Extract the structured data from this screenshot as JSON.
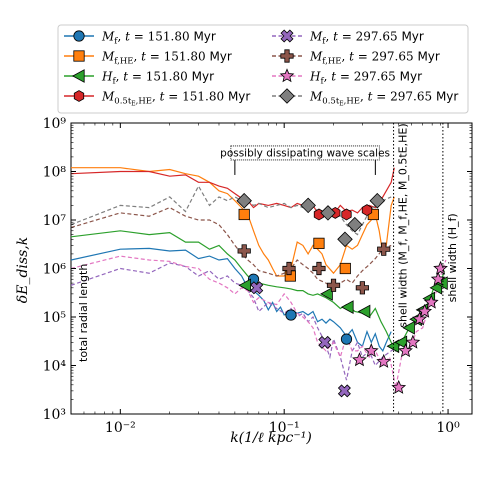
{
  "chart_data": {
    "type": "line",
    "title": "",
    "xlabel": "k(1/ℓ kpc⁻¹)",
    "ylabel": "δE_diss,k",
    "xscale": "log",
    "yscale": "log",
    "xlim": [
      0.005,
      1.4
    ],
    "ylim": [
      1000,
      1000000000
    ],
    "x_ticks": [
      0.01,
      0.1,
      1
    ],
    "x_tick_labels": [
      "10⁻²",
      "10⁻¹",
      "10⁰"
    ],
    "y_ticks": [
      1000,
      10000,
      100000,
      1000000,
      10000000,
      100000000,
      1000000000
    ],
    "y_tick_labels": [
      "10³",
      "10⁴",
      "10⁵",
      "10⁶",
      "10⁷",
      "10⁸",
      "10⁹"
    ],
    "grid": false,
    "legend_placement": "top, outside plot, two columns",
    "legend": [
      {
        "symbol": "M",
        "sub": "f",
        "t": "151.80",
        "unit": "Myr",
        "color": "#1f77b4",
        "marker": "circle",
        "dash": "solid"
      },
      {
        "symbol": "M",
        "sub": "f,HE",
        "t": "151.80",
        "unit": "Myr",
        "color": "#ff7f0e",
        "marker": "square",
        "dash": "solid"
      },
      {
        "symbol": "H",
        "sub": "f",
        "t": "151.80",
        "unit": "Myr",
        "color": "#2ca02c",
        "marker": "triangle-left",
        "dash": "solid"
      },
      {
        "symbol": "M",
        "sub": "0.5t",
        "sub2": "E",
        "subtail": ",HE",
        "t": "151.80",
        "unit": "Myr",
        "color": "#d62728",
        "marker": "hexagon",
        "dash": "solid"
      },
      {
        "symbol": "M",
        "sub": "f",
        "t": "297.65",
        "unit": "Myr",
        "color": "#9467bd",
        "marker": "x-cross",
        "dash": "dashed"
      },
      {
        "symbol": "M",
        "sub": "f,HE",
        "t": "297.65",
        "unit": "Myr",
        "color": "#8c564b",
        "marker": "plus",
        "dash": "dashed"
      },
      {
        "symbol": "H",
        "sub": "f",
        "t": "297.65",
        "unit": "Myr",
        "color": "#e377c2",
        "marker": "star",
        "dash": "dashed"
      },
      {
        "symbol": "M",
        "sub": "0.5t",
        "sub2": "E",
        "subtail": ",HE",
        "t": "297.65",
        "unit": "Myr",
        "color": "#7f7f7f",
        "marker": "diamond",
        "dash": "dashed"
      }
    ],
    "series": [
      {
        "color": "#1f77b4",
        "marker": "circle",
        "dash": "solid",
        "width": 1.2,
        "x": [
          0.005,
          0.01,
          0.015,
          0.02,
          0.025,
          0.03,
          0.035,
          0.04,
          0.045,
          0.05,
          0.055,
          0.06,
          0.065,
          0.07,
          0.075,
          0.08,
          0.085,
          0.09,
          0.095,
          0.1,
          0.11,
          0.12,
          0.13,
          0.14,
          0.15,
          0.16,
          0.17,
          0.18,
          0.19,
          0.2,
          0.22,
          0.24,
          0.26,
          0.28,
          0.3,
          0.32,
          0.34,
          0.36,
          0.38,
          0.4,
          0.42,
          0.45
        ],
        "y": [
          1500000,
          2500000,
          2600000,
          2300000,
          2400000,
          1600000,
          1800000,
          1500000,
          1600000,
          1000000,
          700000,
          400000,
          350000,
          280000,
          220000,
          140000,
          200000,
          130000,
          160000,
          110000,
          140000,
          120000,
          130000,
          110000,
          130000,
          80000,
          90000,
          75000,
          90000,
          80000,
          60000,
          40000,
          55000,
          30000,
          25000,
          50000,
          30000,
          45000,
          25000,
          20000,
          30000,
          50000
        ],
        "mx": [
          0.065,
          0.11,
          0.24
        ],
        "my": [
          600000,
          110000,
          35000
        ]
      },
      {
        "color": "#ff7f0e",
        "marker": "square",
        "dash": "solid",
        "width": 1.2,
        "x": [
          0.005,
          0.01,
          0.015,
          0.02,
          0.025,
          0.03,
          0.035,
          0.04,
          0.045,
          0.05,
          0.055,
          0.06,
          0.065,
          0.07,
          0.075,
          0.08,
          0.085,
          0.09,
          0.1,
          0.11,
          0.12,
          0.13,
          0.14,
          0.15,
          0.16,
          0.17,
          0.18,
          0.2,
          0.22,
          0.24,
          0.26,
          0.28,
          0.3,
          0.32,
          0.34,
          0.36,
          0.38,
          0.4,
          0.42,
          0.45,
          0.47
        ],
        "y": [
          120000000,
          120000000,
          100000000,
          110000000,
          90000000,
          80000000,
          60000000,
          40000000,
          35000000,
          25000000,
          18000000,
          13000000,
          6000000,
          3000000,
          2000000,
          1500000,
          1000000,
          700000,
          700000,
          1000000,
          3500000,
          3000000,
          2000000,
          3000000,
          2500000,
          2000000,
          1200000,
          800000,
          1200000,
          3000000,
          2500000,
          3000000,
          5000000,
          8000000,
          10000000,
          13000000,
          6000000,
          2000000,
          3000000,
          20000000,
          30000000
        ],
        "mx": [
          0.057,
          0.109,
          0.163,
          0.236,
          0.35
        ],
        "my": [
          13000000,
          700000,
          3300000,
          1000000,
          13000000
        ]
      },
      {
        "color": "#2ca02c",
        "marker": "triangle-left",
        "dash": "solid",
        "width": 1.2,
        "x": [
          0.005,
          0.01,
          0.015,
          0.02,
          0.025,
          0.03,
          0.035,
          0.04,
          0.045,
          0.05,
          0.055,
          0.06,
          0.065,
          0.07,
          0.08,
          0.09,
          0.1,
          0.11,
          0.12,
          0.13,
          0.14,
          0.15,
          0.16,
          0.18,
          0.2,
          0.22,
          0.24,
          0.27,
          0.3,
          0.33,
          0.36,
          0.39,
          0.42,
          0.45,
          0.48,
          0.52,
          0.58,
          0.64,
          0.7,
          0.76,
          0.82,
          0.9,
          0.95
        ],
        "y": [
          4500000,
          6000000,
          5000000,
          5500000,
          3500000,
          3500000,
          2500000,
          3000000,
          2000000,
          1500000,
          1000000,
          700000,
          600000,
          500000,
          450000,
          420000,
          400000,
          380000,
          350000,
          350000,
          300000,
          280000,
          300000,
          250000,
          200000,
          150000,
          180000,
          130000,
          120000,
          100000,
          150000,
          80000,
          50000,
          30000,
          20000,
          30000,
          60000,
          80000,
          120000,
          200000,
          400000,
          500000,
          900000
        ],
        "mx": [
          0.058,
          0.183,
          0.245,
          0.31,
          0.465,
          0.52,
          0.58,
          0.64,
          0.7,
          0.77,
          0.85,
          0.92
        ],
        "my": [
          450000,
          300000,
          160000,
          130000,
          25000,
          30000,
          60000,
          90000,
          140000,
          240000,
          400000,
          500000
        ]
      },
      {
        "color": "#d62728",
        "marker": "hexagon",
        "dash": "solid",
        "width": 1.2,
        "x": [
          0.005,
          0.01,
          0.015,
          0.02,
          0.025,
          0.03,
          0.035,
          0.04,
          0.045,
          0.05,
          0.055,
          0.06,
          0.065,
          0.07,
          0.08,
          0.09,
          0.1,
          0.11,
          0.12,
          0.13,
          0.14,
          0.15,
          0.16,
          0.18,
          0.2,
          0.22,
          0.24,
          0.26,
          0.28,
          0.3,
          0.33,
          0.36,
          0.4,
          0.45,
          0.47
        ],
        "y": [
          90000000,
          100000000,
          100000000,
          80000000,
          85000000,
          60000000,
          60000000,
          50000000,
          45000000,
          35000000,
          28000000,
          25000000,
          18000000,
          22000000,
          20000000,
          22000000,
          20000000,
          18000000,
          22000000,
          20000000,
          18000000,
          20000000,
          14000000,
          16000000,
          13000000,
          20000000,
          15000000,
          16000000,
          14000000,
          18000000,
          20000000,
          18000000,
          30000000,
          60000000,
          120000000
        ],
        "mx": [
          0.163,
          0.205,
          0.24,
          0.32
        ],
        "my": [
          13000000,
          14000000,
          13000000,
          16000000
        ]
      },
      {
        "color": "#9467bd",
        "marker": "x-cross",
        "dash": "dashed",
        "width": 1.2,
        "x": [
          0.005,
          0.01,
          0.015,
          0.02,
          0.025,
          0.03,
          0.035,
          0.04,
          0.045,
          0.05,
          0.055,
          0.06,
          0.065,
          0.07,
          0.08,
          0.09,
          0.1,
          0.11,
          0.12,
          0.13,
          0.14,
          0.15,
          0.16,
          0.17,
          0.18,
          0.19,
          0.2,
          0.22,
          0.24,
          0.26,
          0.28,
          0.3,
          0.33,
          0.36,
          0.4,
          0.45,
          0.5
        ],
        "y": [
          450000,
          1000000,
          800000,
          1300000,
          1100000,
          700000,
          900000,
          600000,
          700000,
          500000,
          450000,
          350000,
          250000,
          130000,
          200000,
          150000,
          120000,
          150000,
          100000,
          120000,
          80000,
          100000,
          60000,
          40000,
          25000,
          15000,
          35000,
          15000,
          5000,
          20000,
          30000,
          15000,
          20000,
          10000,
          15000,
          20000,
          25000
        ],
        "mx": [
          0.068,
          0.177,
          0.233
        ],
        "my": [
          400000,
          30000,
          3000
        ]
      },
      {
        "color": "#8c564b",
        "marker": "plus",
        "dash": "dashed",
        "width": 1.2,
        "x": [
          0.005,
          0.01,
          0.015,
          0.02,
          0.025,
          0.03,
          0.035,
          0.04,
          0.045,
          0.05,
          0.055,
          0.06,
          0.065,
          0.07,
          0.08,
          0.09,
          0.1,
          0.11,
          0.12,
          0.13,
          0.14,
          0.15,
          0.16,
          0.18,
          0.2,
          0.22,
          0.24,
          0.26,
          0.28,
          0.3,
          0.33,
          0.36,
          0.4,
          0.45
        ],
        "y": [
          7000000,
          14000000,
          12000000,
          18000000,
          12000000,
          10000000,
          10000000,
          8000000,
          5000000,
          3000000,
          2000000,
          1500000,
          1200000,
          900000,
          800000,
          700000,
          800000,
          1000000,
          1500000,
          1200000,
          1000000,
          800000,
          600000,
          500000,
          400000,
          500000,
          600000,
          500000,
          700000,
          900000,
          1200000,
          1600000,
          2500000,
          3000000
        ],
        "mx": [
          0.057,
          0.107,
          0.163,
          0.2,
          0.3,
          0.405
        ],
        "my": [
          2300000,
          1000000,
          1000000,
          450000,
          400000,
          2500000
        ]
      },
      {
        "color": "#e377c2",
        "marker": "star",
        "dash": "dashed",
        "width": 1.2,
        "x": [
          0.005,
          0.01,
          0.015,
          0.02,
          0.025,
          0.03,
          0.035,
          0.04,
          0.045,
          0.05,
          0.055,
          0.06,
          0.065,
          0.07,
          0.08,
          0.09,
          0.1,
          0.11,
          0.12,
          0.13,
          0.14,
          0.15,
          0.16,
          0.18,
          0.2,
          0.22,
          0.24,
          0.26,
          0.28,
          0.3,
          0.33,
          0.36,
          0.4,
          0.44,
          0.48,
          0.52,
          0.58,
          0.64,
          0.7,
          0.76,
          0.84,
          0.92,
          0.97
        ],
        "y": [
          1000000,
          1800000,
          1500000,
          1400000,
          1100000,
          1000000,
          600000,
          500000,
          400000,
          300000,
          400000,
          350000,
          200000,
          250000,
          200000,
          180000,
          300000,
          200000,
          120000,
          100000,
          80000,
          60000,
          30000,
          20000,
          30000,
          15000,
          40000,
          20000,
          20000,
          25000,
          15000,
          20000,
          10000,
          15000,
          3500,
          15000,
          20000,
          50000,
          60000,
          150000,
          300000,
          900000,
          1500000
        ],
        "mx": [
          0.288,
          0.34,
          0.405,
          0.5,
          0.55,
          0.61,
          0.67,
          0.72,
          0.79,
          0.87,
          0.9
        ],
        "my": [
          13000,
          20000,
          12000,
          3500,
          20000,
          30000,
          90000,
          130000,
          200000,
          600000,
          1000000
        ]
      },
      {
        "color": "#7f7f7f",
        "marker": "diamond",
        "dash": "dashed",
        "width": 1.2,
        "x": [
          0.005,
          0.01,
          0.015,
          0.02,
          0.025,
          0.03,
          0.035,
          0.04,
          0.045,
          0.05,
          0.055,
          0.06,
          0.065,
          0.07,
          0.08,
          0.09,
          0.1,
          0.11,
          0.12,
          0.13,
          0.14,
          0.15,
          0.16,
          0.18,
          0.2,
          0.22,
          0.24,
          0.26,
          0.28,
          0.3,
          0.33,
          0.36,
          0.4,
          0.45
        ],
        "y": [
          8000000,
          20000000,
          18000000,
          30000000,
          15000000,
          50000000,
          20000000,
          30000000,
          25000000,
          30000000,
          25000000,
          25000000,
          20000000,
          22000000,
          18000000,
          20000000,
          22000000,
          18000000,
          20000000,
          18000000,
          22000000,
          20000000,
          15000000,
          12000000,
          15000000,
          12000000,
          8000000,
          6000000,
          5000000,
          8000000,
          15000000,
          20000000,
          25000000,
          30000000
        ],
        "mx": [
          0.057,
          0.14,
          0.185,
          0.235,
          0.27,
          0.37
        ],
        "my": [
          25000000,
          20000000,
          14000000,
          4000000,
          8000000,
          25000000
        ]
      }
    ],
    "annotations": [
      {
        "text": "possibly dissipating wave scales",
        "x_range": [
          0.05,
          0.36
        ],
        "y": 150000000
      },
      {
        "text": "total radial length",
        "x": 0.00545,
        "y": 100000
      }
    ],
    "vlines": [
      {
        "x": 0.465,
        "label": "shell width (M_f, M_f,HE, M_0.5tE,HE)"
      },
      {
        "x": 0.93,
        "label": "shell width (H_f)"
      }
    ]
  }
}
